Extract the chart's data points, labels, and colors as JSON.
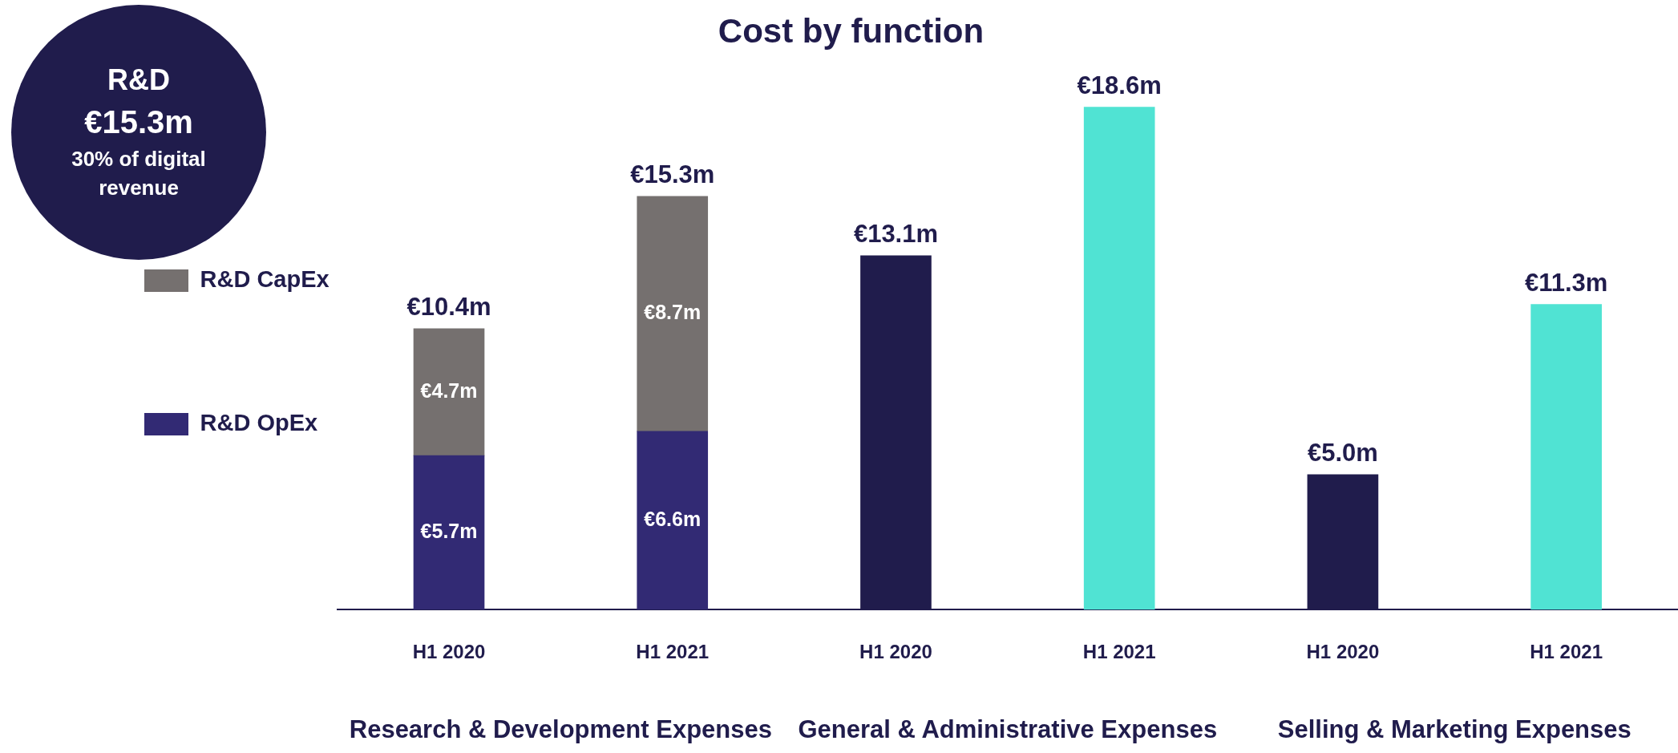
{
  "chart_data": {
    "type": "bar",
    "title": "Cost by function",
    "categories": [
      "H1 2020",
      "H1 2021",
      "H1 2020",
      "H1 2021",
      "H1 2020",
      "H1 2021"
    ],
    "stacked": true,
    "series": [
      {
        "name": "R&D OpEx",
        "color": "#322a74",
        "values": [
          5.7,
          6.6,
          null,
          null,
          null,
          null
        ],
        "value_labels": [
          "€5.7m",
          "€6.6m",
          null,
          null,
          null,
          null
        ]
      },
      {
        "name": "R&D CapEx",
        "color": "#75706f",
        "values": [
          4.7,
          8.7,
          null,
          null,
          null,
          null
        ],
        "value_labels": [
          "€4.7m",
          "€8.7m",
          null,
          null,
          null,
          null
        ]
      },
      {
        "colors": [
          "#201c4c",
          "#50e3d3",
          "#201c4c",
          "#50e3d3",
          "#201c4c",
          "#50e3d3"
        ],
        "values": [
          null,
          null,
          13.1,
          18.6,
          5.0,
          11.3
        ],
        "value_labels": [
          null,
          null,
          "€13.1m",
          "€18.6m",
          "€5.0m",
          "€11.3m"
        ]
      }
    ],
    "totals": [
      "€10.4m",
      "€15.3m",
      null,
      null,
      null,
      null
    ],
    "tick_labels": "x",
    "grid": false,
    "legend": "left",
    "annotations": [
      "Research & Development Expenses",
      "General & Administrative Expenses",
      "Selling & Marketing Expenses",
      "R&D",
      "€15.3m",
      "30% of digital revenue"
    ]
  }
}
